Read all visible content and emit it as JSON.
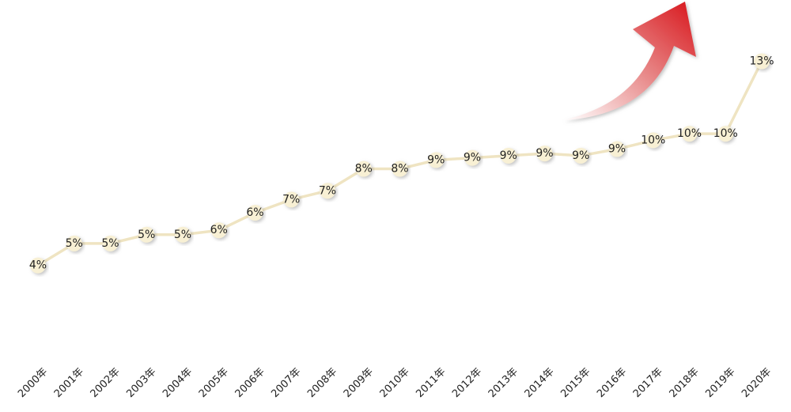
{
  "chart_data": {
    "type": "line",
    "categories": [
      "2000年",
      "2001年",
      "2002年",
      "2003年",
      "2004年",
      "2005年",
      "2006年",
      "2007年",
      "2008年",
      "2009年",
      "2010年",
      "2011年",
      "2012年",
      "2013年",
      "2014年",
      "2015年",
      "2016年",
      "2017年",
      "2018年",
      "2019年",
      "2020年"
    ],
    "values": [
      4.0,
      5.0,
      5.0,
      5.4,
      5.4,
      5.6,
      6.4,
      7.0,
      7.4,
      8.4,
      8.4,
      8.8,
      8.9,
      9.0,
      9.1,
      9.0,
      9.3,
      9.7,
      10.0,
      10.0,
      13.3
    ],
    "value_labels": [
      "4%",
      "5%",
      "5%",
      "5%",
      "5%",
      "6%",
      "6%",
      "7%",
      "7%",
      "8%",
      "8%",
      "9%",
      "9%",
      "9%",
      "9%",
      "9%",
      "9%",
      "10%",
      "10%",
      "10%",
      "13%"
    ],
    "color": "#efe4c2"
  }
}
